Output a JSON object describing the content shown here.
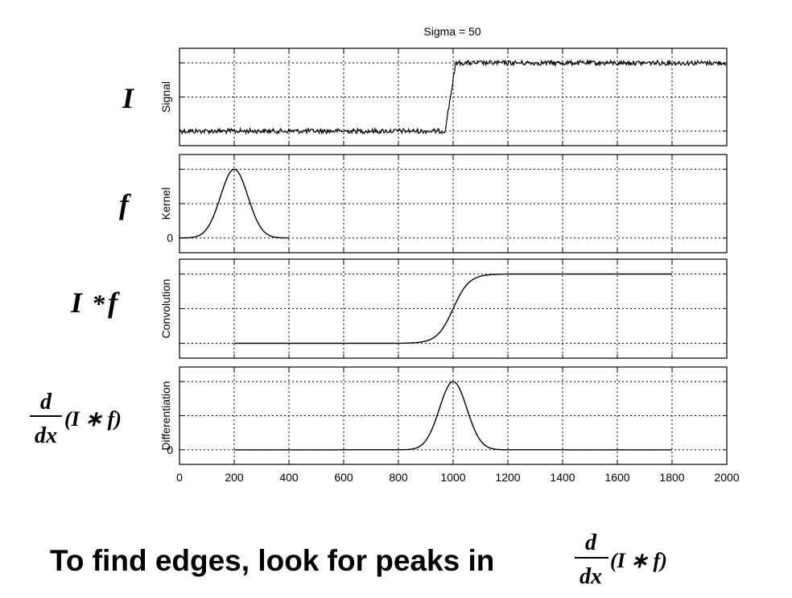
{
  "figure_title": "Sigma = 50",
  "side_labels": {
    "signal": "I",
    "kernel": "f",
    "convolution_left": "I",
    "convolution_op": "*",
    "convolution_right": "f",
    "diff_num": "d",
    "diff_den": "dx",
    "diff_expr": "(I ∗ f)"
  },
  "caption": {
    "text": "To find edges, look for peaks in",
    "formula_num": "d",
    "formula_den": "dx",
    "formula_expr": "(I ∗ f)"
  },
  "chart_data": [
    {
      "type": "line",
      "ylabel": "Signal",
      "xlim": [
        0,
        2000
      ],
      "y_ticks": [],
      "series": [
        {
          "x": [
            0,
            970,
            1010,
            2000
          ],
          "y": [
            0,
            0,
            1,
            1
          ]
        }
      ],
      "noise": true,
      "grid": true
    },
    {
      "type": "line",
      "ylabel": "Kernel",
      "xlim": [
        0,
        2000
      ],
      "y_ticks": [
        "0"
      ],
      "series": [
        {
          "gaussian": {
            "center": 200,
            "sigma": 50,
            "range": [
              0,
              400
            ],
            "peak": 1
          }
        }
      ],
      "grid": true
    },
    {
      "type": "line",
      "ylabel": "Convolution",
      "xlim": [
        0,
        2000
      ],
      "y_ticks": [],
      "series": [
        {
          "sigmoid": {
            "center": 1000,
            "sigma": 50,
            "range": [
              200,
              1800
            ]
          }
        }
      ],
      "grid": true
    },
    {
      "type": "line",
      "ylabel": "Differentiation",
      "xlim": [
        0,
        2000
      ],
      "y_ticks": [
        "0"
      ],
      "series": [
        {
          "gaussian": {
            "center": 1000,
            "sigma": 50,
            "range": [
              200,
              1800
            ],
            "peak": 1
          }
        }
      ],
      "grid": true
    }
  ],
  "x_ticks": [
    "0",
    "200",
    "400",
    "600",
    "800",
    "1000",
    "1200",
    "1400",
    "1600",
    "1800",
    "2000"
  ]
}
